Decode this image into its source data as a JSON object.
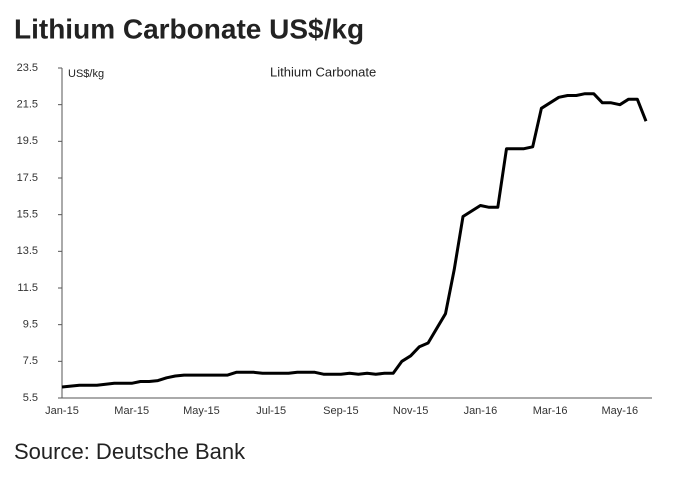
{
  "chart_data": {
    "type": "line",
    "title": "Lithium Carbonate US$/kg",
    "chart_title": "Lithium Carbonate",
    "ylabel": "US$/kg",
    "source": "Source: Deutsche Bank",
    "categories": [
      "Jan-15",
      null,
      null,
      null,
      null,
      null,
      null,
      null,
      "Mar-15",
      null,
      null,
      null,
      null,
      null,
      null,
      null,
      "May-15",
      null,
      null,
      null,
      null,
      null,
      null,
      null,
      "Jul-15",
      null,
      null,
      null,
      null,
      null,
      null,
      null,
      "Sep-15",
      null,
      null,
      null,
      null,
      null,
      null,
      null,
      "Nov-15",
      null,
      null,
      null,
      null,
      null,
      null,
      null,
      "Jan-16",
      null,
      null,
      null,
      null,
      null,
      null,
      null,
      "Mar-16",
      null,
      null,
      null,
      null,
      null,
      null,
      null,
      "May-16",
      null,
      null,
      null
    ],
    "series": [
      {
        "name": "Lithium Carbonate",
        "color": "#000000",
        "values": [
          6.1,
          6.15,
          6.2,
          6.2,
          6.2,
          6.25,
          6.3,
          6.3,
          6.3,
          6.4,
          6.4,
          6.45,
          6.6,
          6.7,
          6.75,
          6.75,
          6.75,
          6.75,
          6.75,
          6.75,
          6.9,
          6.9,
          6.9,
          6.85,
          6.85,
          6.85,
          6.85,
          6.9,
          6.9,
          6.9,
          6.8,
          6.8,
          6.8,
          6.85,
          6.8,
          6.85,
          6.8,
          6.85,
          6.85,
          7.5,
          7.8,
          8.3,
          8.5,
          9.3,
          10.1,
          12.5,
          15.4,
          15.7,
          16.0,
          15.9,
          15.9,
          19.1,
          19.1,
          19.1,
          19.2,
          21.3,
          21.6,
          21.9,
          22.0,
          22.0,
          22.1,
          22.1,
          21.6,
          21.6,
          21.5,
          21.8,
          21.8,
          20.6
        ]
      }
    ],
    "ylim": [
      5.5,
      23.5
    ],
    "yticks": [
      23.5,
      21.5,
      19.5,
      17.5,
      15.5,
      13.5,
      11.5,
      9.5,
      7.5,
      5.5
    ],
    "grid": false
  }
}
